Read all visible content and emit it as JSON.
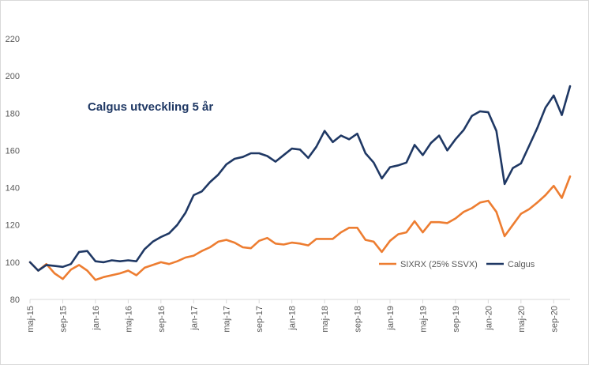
{
  "chart_data": {
    "type": "line",
    "title": "Calgus utveckling 5 år",
    "xlabel": "",
    "ylabel": "",
    "ylim": [
      80,
      220
    ],
    "yticks": [
      80,
      100,
      120,
      140,
      160,
      180,
      200,
      220
    ],
    "grid": false,
    "legend_position": "bottom-right",
    "x_tick_labels": [
      "maj-15",
      "sep-15",
      "jan-16",
      "maj-16",
      "sep-16",
      "jan-17",
      "maj-17",
      "sep-17",
      "jan-18",
      "maj-18",
      "sep-18",
      "jan-19",
      "maj-19",
      "sep-19",
      "jan-20",
      "maj-20",
      "sep-20"
    ],
    "x_tick_months": [
      0,
      4,
      8,
      12,
      16,
      20,
      24,
      28,
      32,
      36,
      40,
      44,
      48,
      52,
      56,
      60,
      64
    ],
    "x": [
      "maj-15",
      "jun-15",
      "jul-15",
      "aug-15",
      "sep-15",
      "okt-15",
      "nov-15",
      "dec-15",
      "jan-16",
      "feb-16",
      "mar-16",
      "apr-16",
      "maj-16",
      "jun-16",
      "jul-16",
      "aug-16",
      "sep-16",
      "okt-16",
      "nov-16",
      "dec-16",
      "jan-17",
      "feb-17",
      "mar-17",
      "apr-17",
      "maj-17",
      "jun-17",
      "jul-17",
      "aug-17",
      "sep-17",
      "okt-17",
      "nov-17",
      "dec-17",
      "jan-18",
      "feb-18",
      "mar-18",
      "apr-18",
      "maj-18",
      "jun-18",
      "jul-18",
      "aug-18",
      "sep-18",
      "okt-18",
      "nov-18",
      "dec-18",
      "jan-19",
      "feb-19",
      "mar-19",
      "apr-19",
      "maj-19",
      "jun-19",
      "jul-19",
      "aug-19",
      "sep-19",
      "okt-19",
      "nov-19",
      "dec-19",
      "jan-20",
      "feb-20",
      "mar-20",
      "apr-20",
      "maj-20",
      "jun-20",
      "jul-20",
      "aug-20",
      "sep-20",
      "okt-20",
      "nov-20"
    ],
    "series": [
      {
        "name": "SIXRX (25% SSVX)",
        "color": "#ed7d31",
        "values": [
          100,
          95.5,
          99,
          94,
          91,
          96,
          98.5,
          95.5,
          90.5,
          92,
          93,
          94,
          95.5,
          93,
          97,
          98.5,
          100,
          99,
          100.5,
          102.5,
          103.5,
          106,
          108,
          111,
          112,
          110.5,
          108,
          107.5,
          111.5,
          113,
          110,
          109.5,
          110.5,
          110,
          109,
          112.5,
          112.5,
          112.5,
          116,
          118.5,
          118.5,
          112,
          111,
          105.5,
          111.5,
          115,
          116,
          122,
          116,
          121.5,
          121.5,
          121,
          123.5,
          127,
          129,
          132,
          133,
          127,
          114,
          120,
          126,
          128.5,
          132,
          136,
          141,
          134.5,
          146
        ]
      },
      {
        "name": "Calgus",
        "color": "#1f3864",
        "values": [
          100,
          95.5,
          98.5,
          98,
          97.5,
          99,
          105.5,
          106,
          100.5,
          100,
          101,
          100.5,
          101,
          100.5,
          107,
          111,
          113.5,
          115.5,
          120,
          126.5,
          136,
          138,
          143,
          147,
          152.5,
          155.5,
          156.5,
          158.5,
          158.5,
          157,
          154,
          157.5,
          161,
          160.5,
          156,
          162,
          170.5,
          164.5,
          168,
          166,
          169,
          158.5,
          153.5,
          145,
          151,
          152,
          153.5,
          163,
          157.5,
          164,
          168,
          160,
          166,
          171,
          178.5,
          181,
          180.5,
          170.5,
          142,
          150.5,
          153,
          162.5,
          172,
          183,
          189.5,
          179,
          194.5
        ]
      }
    ]
  }
}
